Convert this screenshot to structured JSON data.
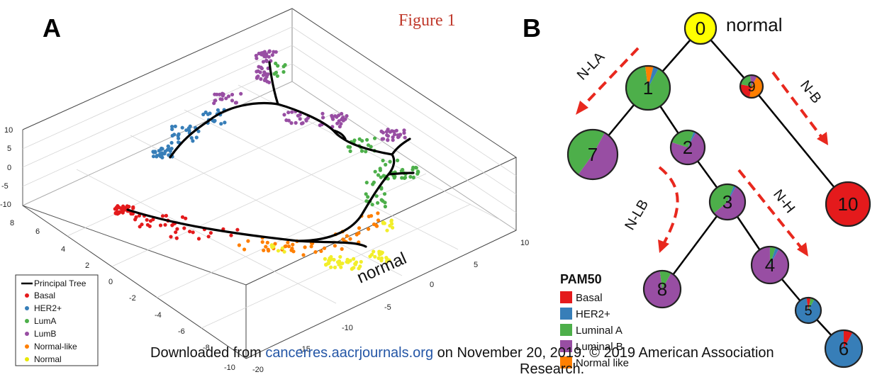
{
  "figure_title": "Figure 1",
  "panel_a": {
    "letter": "A",
    "annotation": "normal",
    "z_ticks": [
      "10",
      "5",
      "0",
      "-5",
      "-10"
    ],
    "y_ticks": [
      "8",
      "6",
      "4",
      "2",
      "0",
      "-2",
      "-4",
      "-6",
      "-8",
      "-10"
    ],
    "x_ticks": [
      "-20",
      "-15",
      "-10",
      "-5",
      "0",
      "5",
      "10"
    ],
    "legend": [
      {
        "label": "Principal Tree",
        "color": "#000000",
        "kind": "line"
      },
      {
        "label": "Basal",
        "color": "#e41a1c",
        "kind": "dot"
      },
      {
        "label": "HER2+",
        "color": "#377eb8",
        "kind": "dot"
      },
      {
        "label": "LumA",
        "color": "#4daf4a",
        "kind": "dot"
      },
      {
        "label": "LumB",
        "color": "#984ea3",
        "kind": "dot"
      },
      {
        "label": "Normal-like",
        "color": "#ff7f00",
        "kind": "dot"
      },
      {
        "label": "Normal",
        "color": "#ffff33",
        "kind": "dot"
      }
    ]
  },
  "panel_b": {
    "letter": "B",
    "root_annotation": "normal",
    "nodes": [
      {
        "id": "0",
        "slices": [
          {
            "color": "#ffff00",
            "value": 1
          }
        ]
      },
      {
        "id": "1",
        "slices": [
          {
            "color": "#4daf4a",
            "value": 0.9
          },
          {
            "color": "#ff7f00",
            "value": 0.06
          },
          {
            "color": "#377eb8",
            "value": 0.04
          }
        ]
      },
      {
        "id": "2",
        "slices": [
          {
            "color": "#984ea3",
            "value": 0.72
          },
          {
            "color": "#4daf4a",
            "value": 0.26
          },
          {
            "color": "#377eb8",
            "value": 0.02
          }
        ]
      },
      {
        "id": "3",
        "slices": [
          {
            "color": "#984ea3",
            "value": 0.56
          },
          {
            "color": "#4daf4a",
            "value": 0.42
          },
          {
            "color": "#377eb8",
            "value": 0.02
          }
        ]
      },
      {
        "id": "4",
        "slices": [
          {
            "color": "#984ea3",
            "value": 0.92
          },
          {
            "color": "#4daf4a",
            "value": 0.05
          },
          {
            "color": "#377eb8",
            "value": 0.03
          }
        ]
      },
      {
        "id": "5",
        "slices": [
          {
            "color": "#377eb8",
            "value": 0.9
          },
          {
            "color": "#e41a1c",
            "value": 0.05
          },
          {
            "color": "#4daf4a",
            "value": 0.05
          }
        ]
      },
      {
        "id": "6",
        "slices": [
          {
            "color": "#377eb8",
            "value": 0.92
          },
          {
            "color": "#e41a1c",
            "value": 0.08
          }
        ]
      },
      {
        "id": "7",
        "slices": [
          {
            "color": "#984ea3",
            "value": 0.52
          },
          {
            "color": "#4daf4a",
            "value": 0.48
          }
        ]
      },
      {
        "id": "8",
        "slices": [
          {
            "color": "#984ea3",
            "value": 0.9
          },
          {
            "color": "#4daf4a",
            "value": 0.1
          }
        ]
      },
      {
        "id": "9",
        "slices": [
          {
            "color": "#ff7f00",
            "value": 0.45
          },
          {
            "color": "#e41a1c",
            "value": 0.25
          },
          {
            "color": "#4daf4a",
            "value": 0.2
          },
          {
            "color": "#984ea3",
            "value": 0.1
          }
        ]
      },
      {
        "id": "10",
        "slices": [
          {
            "color": "#e41a1c",
            "value": 1
          }
        ]
      }
    ],
    "edges": [
      [
        "0",
        "1"
      ],
      [
        "0",
        "9"
      ],
      [
        "1",
        "7"
      ],
      [
        "1",
        "2"
      ],
      [
        "2",
        "3"
      ],
      [
        "3",
        "8"
      ],
      [
        "3",
        "4"
      ],
      [
        "4",
        "5"
      ],
      [
        "5",
        "6"
      ],
      [
        "9",
        "10"
      ]
    ],
    "branch_labels": [
      "N-LA",
      "N-B",
      "N-LB",
      "N-H"
    ],
    "pam50": {
      "title": "PAM50",
      "items": [
        {
          "label": "Basal",
          "color": "#e41a1c"
        },
        {
          "label": "HER2+",
          "color": "#377eb8"
        },
        {
          "label": "Luminal A",
          "color": "#4daf4a"
        },
        {
          "label": "Luminal B",
          "color": "#984ea3"
        },
        {
          "label": "Normal like",
          "color": "#ff7f00"
        }
      ]
    }
  },
  "footer": {
    "prefix": "Downloaded from ",
    "link": "cancerres.aacrjournals.org",
    "suffix": " on November 20, 2019. © 2019 American Association",
    "line2": "Research."
  }
}
